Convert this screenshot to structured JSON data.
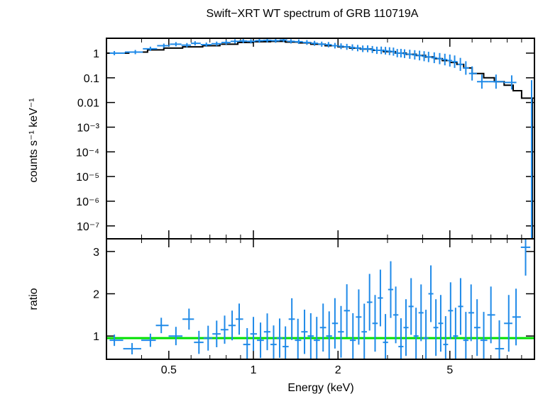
{
  "chart_data": [
    {
      "type": "scatter",
      "title": "Swift−XRT WT spectrum of GRB 110719A",
      "ylabel": "counts s⁻¹ keV⁻¹",
      "xlabel": "",
      "xscale": "log",
      "yscale": "log",
      "xlim": [
        0.3,
        10
      ],
      "ylim": [
        3e-08,
        4
      ],
      "yticks": [
        {
          "value": 1,
          "label": "1"
        },
        {
          "value": 0.1,
          "label": "0.1"
        },
        {
          "value": 0.01,
          "label": "0.01"
        },
        {
          "value": 0.001,
          "label": "10⁻³"
        },
        {
          "value": 0.0001,
          "label": "10⁻⁴"
        },
        {
          "value": 1e-05,
          "label": "10⁻⁵"
        },
        {
          "value": 1e-06,
          "label": "10⁻⁶"
        },
        {
          "value": 1e-07,
          "label": "10⁻⁷"
        }
      ],
      "data_color": "#1f8ae8",
      "model_color": "#000000",
      "data_points": [
        [
          0.32,
          1.0
        ],
        [
          0.38,
          1.1
        ],
        [
          0.43,
          1.5
        ],
        [
          0.48,
          2.0
        ],
        [
          0.53,
          2.3
        ],
        [
          0.58,
          2.1
        ],
        [
          0.62,
          2.5
        ],
        [
          0.68,
          2.2
        ],
        [
          0.74,
          2.4
        ],
        [
          0.8,
          2.7
        ],
        [
          0.86,
          3.0
        ],
        [
          0.92,
          3.1
        ],
        [
          0.98,
          3.0
        ],
        [
          1.05,
          3.2
        ],
        [
          1.12,
          3.3
        ],
        [
          1.2,
          3.2
        ],
        [
          1.28,
          3.4
        ],
        [
          1.36,
          3.0
        ],
        [
          1.45,
          2.9
        ],
        [
          1.55,
          2.7
        ],
        [
          1.65,
          2.5
        ],
        [
          1.75,
          2.3
        ],
        [
          1.85,
          2.2
        ],
        [
          1.95,
          2.0
        ],
        [
          2.05,
          1.9
        ],
        [
          2.15,
          1.8
        ],
        [
          2.25,
          1.7
        ],
        [
          2.35,
          1.6
        ],
        [
          2.45,
          1.5
        ],
        [
          2.55,
          1.5
        ],
        [
          2.65,
          1.4
        ],
        [
          2.75,
          1.3
        ],
        [
          2.85,
          1.3
        ],
        [
          2.95,
          1.25
        ],
        [
          3.05,
          1.2
        ],
        [
          3.15,
          1.15
        ],
        [
          3.25,
          1.0
        ],
        [
          3.35,
          1.0
        ],
        [
          3.45,
          0.95
        ],
        [
          3.6,
          0.9
        ],
        [
          3.75,
          0.85
        ],
        [
          3.9,
          0.8
        ],
        [
          4.05,
          0.75
        ],
        [
          4.2,
          0.7
        ],
        [
          4.4,
          0.65
        ],
        [
          4.6,
          0.6
        ],
        [
          4.8,
          0.55
        ],
        [
          5.0,
          0.5
        ],
        [
          5.2,
          0.45
        ],
        [
          5.45,
          0.35
        ],
        [
          5.7,
          0.25
        ],
        [
          6.0,
          0.15
        ],
        [
          6.5,
          0.07
        ],
        [
          7.3,
          0.07
        ],
        [
          8.3,
          0.065
        ]
      ],
      "model_steps": [
        [
          0.3,
          1.0
        ],
        [
          0.36,
          1.1
        ],
        [
          0.42,
          1.35
        ],
        [
          0.48,
          1.6
        ],
        [
          0.56,
          1.8
        ],
        [
          0.66,
          2.0
        ],
        [
          0.76,
          2.3
        ],
        [
          0.88,
          2.7
        ],
        [
          1.0,
          2.9
        ],
        [
          1.15,
          3.0
        ],
        [
          1.3,
          2.8
        ],
        [
          1.45,
          2.6
        ],
        [
          1.6,
          2.3
        ],
        [
          1.8,
          2.0
        ],
        [
          2.0,
          1.8
        ],
        [
          2.2,
          1.6
        ],
        [
          2.4,
          1.45
        ],
        [
          2.65,
          1.3
        ],
        [
          2.9,
          1.15
        ],
        [
          3.2,
          1.0
        ],
        [
          3.5,
          0.9
        ],
        [
          3.8,
          0.8
        ],
        [
          4.1,
          0.7
        ],
        [
          4.4,
          0.6
        ],
        [
          4.7,
          0.5
        ],
        [
          5.0,
          0.42
        ],
        [
          5.3,
          0.35
        ],
        [
          5.6,
          0.25
        ],
        [
          6.0,
          0.15
        ],
        [
          6.6,
          0.1
        ],
        [
          7.2,
          0.07
        ],
        [
          7.8,
          0.05
        ],
        [
          8.4,
          0.03
        ],
        [
          9.0,
          0.015
        ],
        [
          9.5,
          0.015
        ]
      ]
    },
    {
      "type": "scatter",
      "title": "",
      "ylabel": "ratio",
      "xlabel": "Energy (keV)",
      "xscale": "log",
      "yscale": "linear",
      "xlim": [
        0.3,
        10
      ],
      "ylim": [
        0.45,
        3.3
      ],
      "xticks": [
        {
          "value": 0.5,
          "label": "0.5"
        },
        {
          "value": 1,
          "label": "1"
        },
        {
          "value": 2,
          "label": "2"
        },
        {
          "value": 5,
          "label": "5"
        }
      ],
      "yticks": [
        {
          "value": 1,
          "label": "1"
        },
        {
          "value": 2,
          "label": "2"
        },
        {
          "value": 3,
          "label": "3"
        }
      ],
      "reference_line": 0.95,
      "reference_color": "#00e000",
      "data_color": "#1f8ae8",
      "data_points": [
        [
          0.32,
          0.9
        ],
        [
          0.37,
          0.7
        ],
        [
          0.43,
          0.9
        ],
        [
          0.47,
          1.25
        ],
        [
          0.53,
          1.0
        ],
        [
          0.59,
          1.4
        ],
        [
          0.64,
          0.85
        ],
        [
          0.69,
          0.95
        ],
        [
          0.74,
          1.05
        ],
        [
          0.79,
          1.15
        ],
        [
          0.84,
          1.25
        ],
        [
          0.89,
          1.4
        ],
        [
          0.95,
          0.8
        ],
        [
          1.0,
          1.05
        ],
        [
          1.06,
          0.9
        ],
        [
          1.12,
          1.1
        ],
        [
          1.18,
          0.8
        ],
        [
          1.24,
          0.95
        ],
        [
          1.3,
          0.75
        ],
        [
          1.37,
          1.4
        ],
        [
          1.44,
          0.9
        ],
        [
          1.52,
          1.1
        ],
        [
          1.6,
          1.0
        ],
        [
          1.68,
          0.9
        ],
        [
          1.77,
          1.2
        ],
        [
          1.86,
          1.0
        ],
        [
          1.95,
          1.3
        ],
        [
          2.05,
          1.1
        ],
        [
          2.15,
          1.6
        ],
        [
          2.26,
          0.9
        ],
        [
          2.37,
          1.45
        ],
        [
          2.48,
          1.1
        ],
        [
          2.59,
          1.8
        ],
        [
          2.71,
          1.3
        ],
        [
          2.83,
          1.9
        ],
        [
          2.95,
          0.85
        ],
        [
          3.08,
          2.1
        ],
        [
          3.21,
          1.5
        ],
        [
          3.35,
          0.75
        ],
        [
          3.49,
          1.2
        ],
        [
          3.64,
          1.7
        ],
        [
          3.79,
          1.0
        ],
        [
          3.95,
          1.55
        ],
        [
          4.11,
          0.95
        ],
        [
          4.28,
          2.0
        ],
        [
          4.46,
          1.2
        ],
        [
          4.64,
          1.3
        ],
        [
          4.83,
          0.8
        ],
        [
          5.03,
          1.6
        ],
        [
          5.24,
          1.0
        ],
        [
          5.46,
          1.7
        ],
        [
          5.7,
          0.9
        ],
        [
          5.95,
          1.55
        ],
        [
          6.25,
          1.2
        ],
        [
          6.6,
          0.9
        ],
        [
          7.0,
          1.5
        ],
        [
          7.5,
          0.7
        ],
        [
          8.1,
          1.3
        ],
        [
          8.6,
          1.45
        ],
        [
          9.3,
          3.1
        ]
      ]
    }
  ]
}
